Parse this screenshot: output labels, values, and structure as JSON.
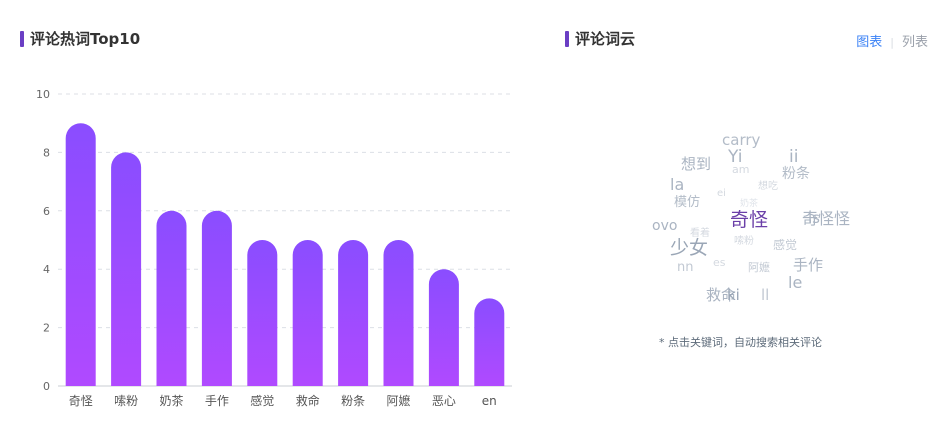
{
  "left_panel": {
    "title": "评论热词Top10"
  },
  "right_panel": {
    "title": "评论词云",
    "toggle": {
      "chart": "图表",
      "list": "列表"
    },
    "hint": "* 点击关键词，自动搜索相关评论"
  },
  "colors": {
    "bar_top": "#8a4dff",
    "bar_bottom": "#b04aff",
    "accent": "#6a3ec4",
    "link": "#3b82f6"
  },
  "chart_data": {
    "type": "bar",
    "title": "评论热词Top10",
    "categories": [
      "奇怪",
      "嗦粉",
      "奶茶",
      "手作",
      "感觉",
      "救命",
      "粉条",
      "阿嬷",
      "恶心",
      "en"
    ],
    "values": [
      9,
      8,
      6,
      6,
      5,
      5,
      5,
      5,
      4,
      3
    ],
    "ylim": [
      0,
      10
    ],
    "yticks": [
      0,
      2,
      4,
      6,
      8,
      10
    ],
    "grid": true,
    "legend": "none"
  },
  "word_cloud": [
    {
      "text": "carry",
      "color": "#b3bcc8",
      "size": 15
    },
    {
      "text": "Yi",
      "color": "#aab4c2",
      "size": 17
    },
    {
      "text": "ii",
      "color": "#aab4c2",
      "size": 17
    },
    {
      "text": "想到",
      "color": "#aab4c2",
      "size": 15
    },
    {
      "text": "am",
      "color": "#d4d9e0",
      "size": 11
    },
    {
      "text": "粉条",
      "color": "#b3bcc8",
      "size": 14
    },
    {
      "text": "la",
      "color": "#aab4c2",
      "size": 16
    },
    {
      "text": "想吃",
      "color": "#d4d9e0",
      "size": 10
    },
    {
      "text": "ei",
      "color": "#d4d9e0",
      "size": 10
    },
    {
      "text": "模仿",
      "color": "#b3bcc8",
      "size": 13
    },
    {
      "text": "奶茶",
      "color": "#e0e4ea",
      "size": 9
    },
    {
      "text": "奇怪",
      "color": "#6b3fa8",
      "size": 19
    },
    {
      "text": "奇怪怪",
      "color": "#aab4c2",
      "size": 16
    },
    {
      "text": "is",
      "color": "#aab4c2",
      "size": 15
    },
    {
      "text": "ovo",
      "color": "#aab4c2",
      "size": 14
    },
    {
      "text": "看着",
      "color": "#d4d9e0",
      "size": 10
    },
    {
      "text": "少女",
      "color": "#9aa6b6",
      "size": 19
    },
    {
      "text": "嗦粉",
      "color": "#d4d9e0",
      "size": 10
    },
    {
      "text": "感觉",
      "color": "#c2c9d3",
      "size": 12
    },
    {
      "text": "nn",
      "color": "#c2c9d3",
      "size": 13
    },
    {
      "text": "es",
      "color": "#d4d9e0",
      "size": 11
    },
    {
      "text": "阿嬷",
      "color": "#c2c9d3",
      "size": 11
    },
    {
      "text": "手作",
      "color": "#aab4c2",
      "size": 15
    },
    {
      "text": "le",
      "color": "#aab4c2",
      "size": 16
    },
    {
      "text": "救命",
      "color": "#aab4c2",
      "size": 15
    },
    {
      "text": "ki",
      "color": "#9aa6b6",
      "size": 15
    },
    {
      "text": "ll",
      "color": "#c2c9d3",
      "size": 15
    }
  ]
}
